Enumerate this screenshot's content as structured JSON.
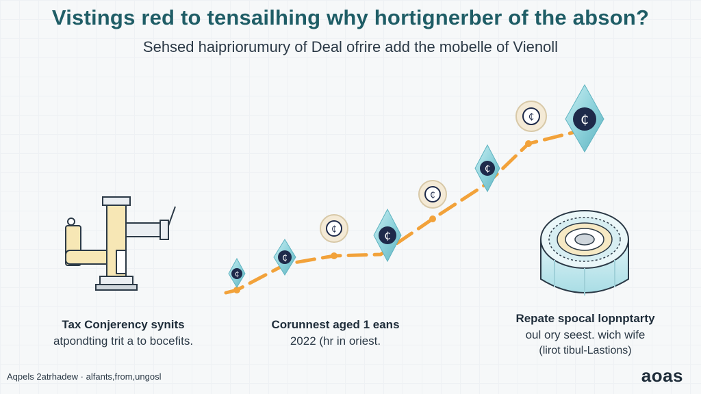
{
  "header": {
    "title": "Vistings red to tensailhing why hortignerber of the abson?",
    "subtitle": "Sehsed haipriorumury of Deal ofrire add the mobelle of Vienoll"
  },
  "captions": {
    "left": {
      "line1": "Tax Conjerency synits",
      "line2": "atpondting trit a to bocefits."
    },
    "middle": {
      "line1": "Corunnest aged 1 eans",
      "line2": "2022 (hr in oriest."
    },
    "right": {
      "line1": "Repate spocal lopnptarty",
      "line2": "oul ory seest. wich wife",
      "line3": "(lirot tibul-Lastions)"
    }
  },
  "footer": {
    "text": "Aqpels 2atrhadew · alfants,from,ungosl"
  },
  "brand": {
    "logo_text": "aoas"
  },
  "icons": {
    "left_illustration": "industrial-machine-icon",
    "coin_symbol": "crypto-coin-icon",
    "right_illustration": "cylindrical-vault-icon"
  },
  "colors": {
    "title": "#1f5d66",
    "trend_line": "#f2a23a",
    "crystal": "#8fd3dc",
    "coin": "#1e2a4a"
  }
}
